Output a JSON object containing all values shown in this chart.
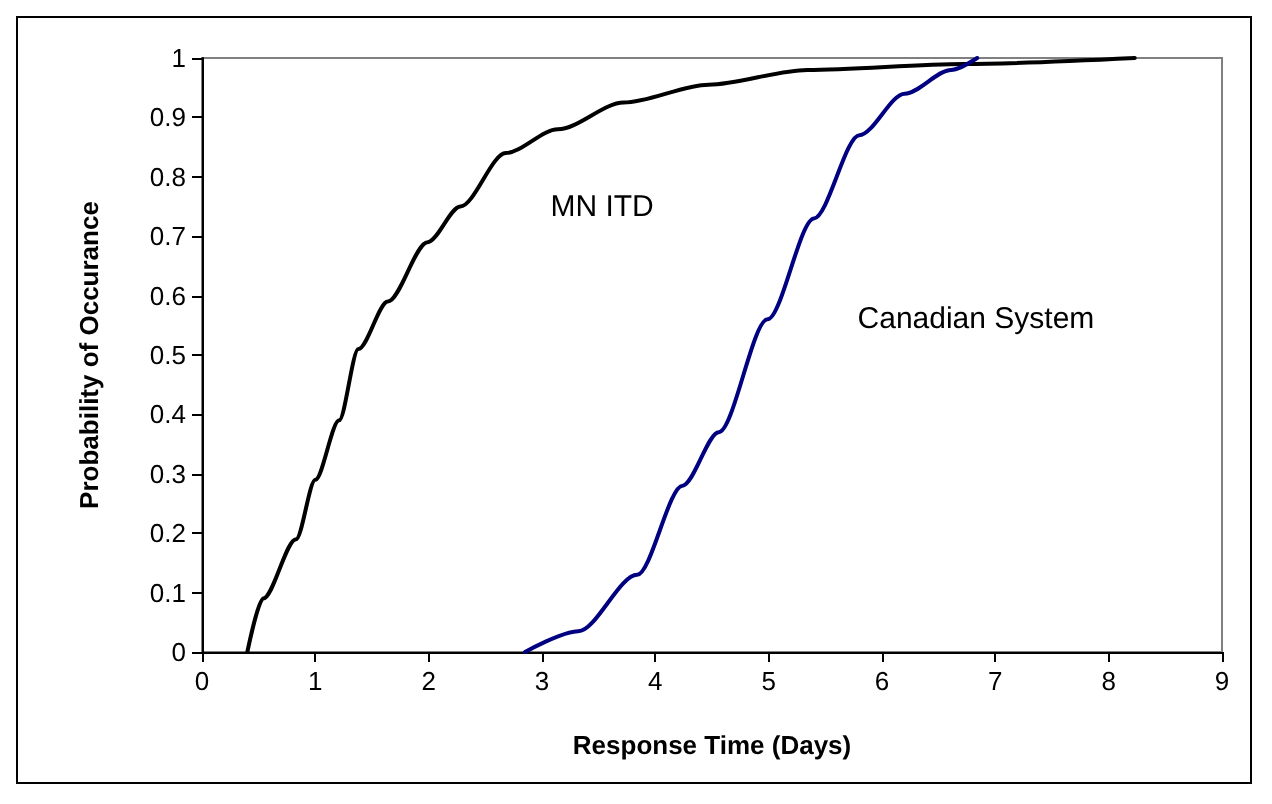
{
  "chart_data": {
    "type": "line",
    "xlabel": "Response Time (Days)",
    "ylabel": "Probability of Occurance",
    "xlim": [
      0,
      9
    ],
    "xticks": [
      0,
      1,
      2,
      3,
      4,
      5,
      6,
      7,
      8,
      9
    ],
    "ylim": [
      0,
      1
    ],
    "yticks": [
      0,
      0.1,
      0.2,
      0.3,
      0.4,
      0.5,
      0.6,
      0.7,
      0.8,
      0.9,
      1
    ],
    "grid": false,
    "marker": "none",
    "series": [
      {
        "name": "MN ITD",
        "color": "#000000",
        "x": [
          0.4,
          0.54,
          0.83,
          1.0,
          1.21,
          1.38,
          1.64,
          1.99,
          2.28,
          2.68,
          3.14,
          3.72,
          4.47,
          5.34,
          6.72,
          8.23
        ],
        "values": [
          0,
          0.09,
          0.19,
          0.29,
          0.39,
          0.51,
          0.59,
          0.69,
          0.75,
          0.84,
          0.88,
          0.925,
          0.955,
          0.98,
          0.99,
          1
        ]
      },
      {
        "name": "Canadian System",
        "color": "#000080",
        "x": [
          2.85,
          3.32,
          3.84,
          4.24,
          4.56,
          4.99,
          5.4,
          5.8,
          6.2,
          6.61,
          6.84
        ],
        "values": [
          0,
          0.035,
          0.13,
          0.28,
          0.37,
          0.56,
          0.73,
          0.87,
          0.94,
          0.98,
          1
        ]
      }
    ]
  }
}
